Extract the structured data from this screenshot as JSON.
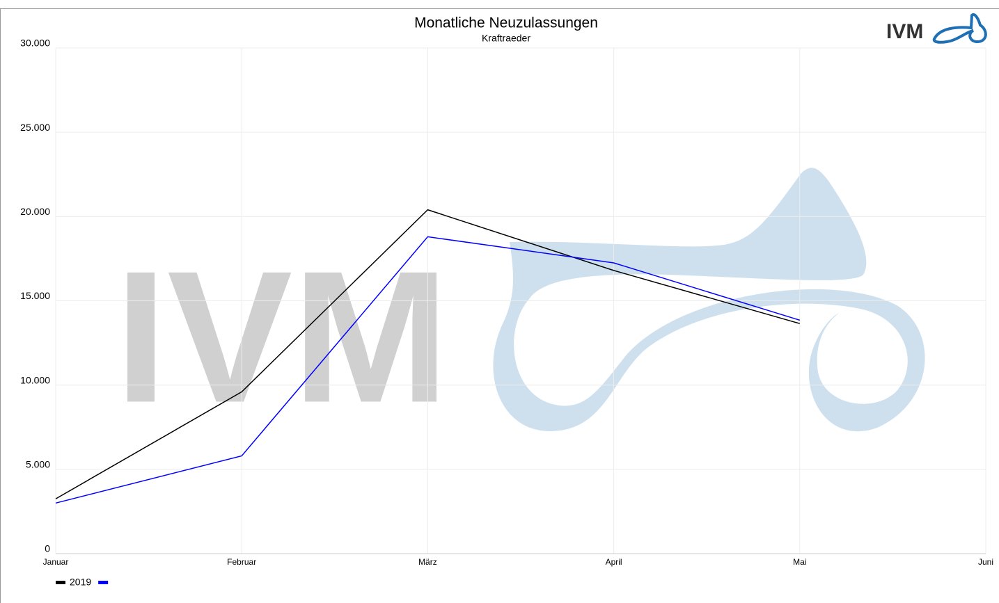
{
  "chart_data": {
    "type": "line",
    "title": "Monatliche Neuzulassungen",
    "subtitle": "Kraftraeder",
    "logo": "IVM",
    "categories": [
      "Januar",
      "Februar",
      "März",
      "April",
      "Mai",
      "Juni"
    ],
    "series": [
      {
        "name": "2019",
        "color": "#000000",
        "values": [
          3250,
          9600,
          20400,
          16800,
          13650,
          null
        ]
      },
      {
        "color": "#0000ff",
        "values": [
          3000,
          5800,
          18800,
          17250,
          13850,
          null
        ]
      }
    ],
    "ylim": [
      0,
      30000
    ],
    "yticks": [
      0,
      {
        "value": 5000,
        "label": "5.000"
      },
      {
        "value": 10000,
        "label": "10.000"
      },
      {
        "value": 15000,
        "label": "15.000"
      },
      {
        "value": 20000,
        "label": "20.000"
      },
      {
        "value": 25000,
        "label": "25.000"
      },
      {
        "value": 30000,
        "label": "30.000"
      }
    ],
    "grid": true,
    "legend": "bottom-left"
  }
}
